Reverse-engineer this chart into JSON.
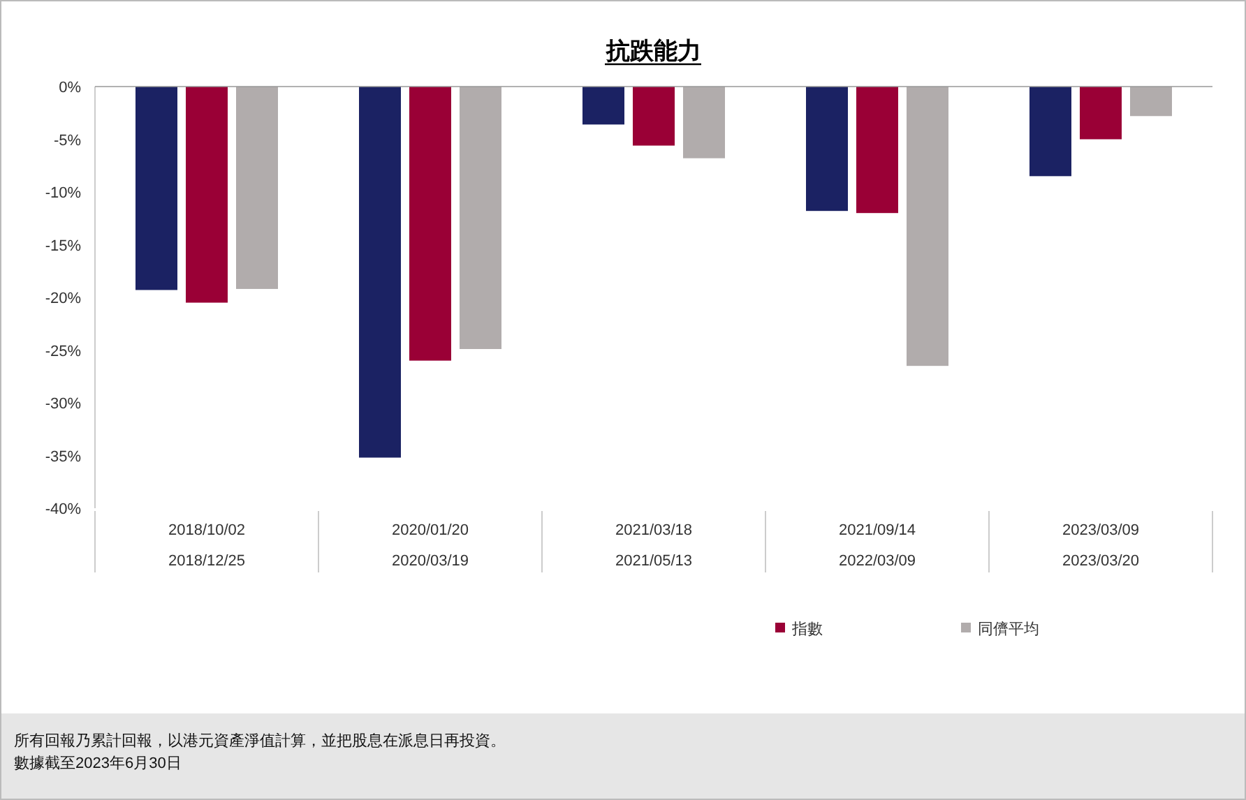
{
  "chart_data": {
    "type": "bar",
    "title": "抗跌能力",
    "categories": [
      "2018/10/02\n2018/12/25",
      "2020/01/20\n2020/03/19",
      "2021/03/18\n2021/05/13",
      "2021/09/14\n2022/03/09",
      "2023/03/09\n2023/03/20"
    ],
    "series": [
      {
        "color": "#1b2263",
        "values": [
          -19.3,
          -35.2,
          -3.6,
          -11.8,
          -8.5
        ]
      },
      {
        "name": "指數",
        "color": "#9a0036",
        "values": [
          -20.5,
          -26.0,
          -5.6,
          -12.0,
          -5.0
        ]
      },
      {
        "name": "同儕平均",
        "color": "#b1acac",
        "values": [
          -19.2,
          -24.9,
          -6.8,
          -26.5,
          -2.8
        ]
      }
    ],
    "ylim": [
      -40,
      0
    ],
    "yticks": [
      {
        "value": 0,
        "label": "0%"
      },
      {
        "value": -5,
        "label": "-5%"
      },
      {
        "value": -10,
        "label": "-10%"
      },
      {
        "value": -15,
        "label": "-15%"
      },
      {
        "value": -20,
        "label": "-20%"
      },
      {
        "value": -25,
        "label": "-25%"
      },
      {
        "value": -30,
        "label": "-30%"
      },
      {
        "value": -35,
        "label": "-35%"
      },
      {
        "value": -40,
        "label": "-40%"
      }
    ],
    "legend": "bottom",
    "annotations": [
      "所有回報乃累計回報，以港元資產淨值計算，並把股息在派息日再投資。",
      "數據截至2023年6月30日"
    ]
  }
}
